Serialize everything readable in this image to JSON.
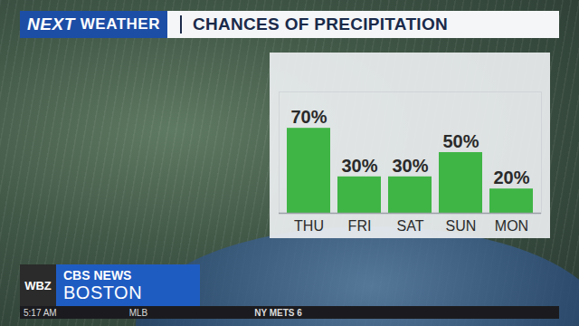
{
  "header": {
    "logo": [
      "NEXT",
      "WEATHER"
    ]
  },
  "chart_data": {
    "type": "bar",
    "title": "CHANCES OF PRECIPITATION",
    "categories": [
      "THU",
      "FRI",
      "SAT",
      "SUN",
      "MON"
    ],
    "values": [
      70,
      30,
      30,
      50,
      20
    ],
    "value_labels": [
      "70%",
      "30%",
      "30%",
      "50%",
      "20%"
    ],
    "data_labels": true,
    "tick_labels": "x",
    "color": "#3fb545",
    "ylim": [
      0,
      100
    ]
  },
  "station": {
    "call_sign": "WBZ",
    "network": "CBS NEWS",
    "city": "BOSTON"
  },
  "ticker": {
    "time": "5:17 AM",
    "league": "MLB",
    "score": "NY METS 6"
  }
}
